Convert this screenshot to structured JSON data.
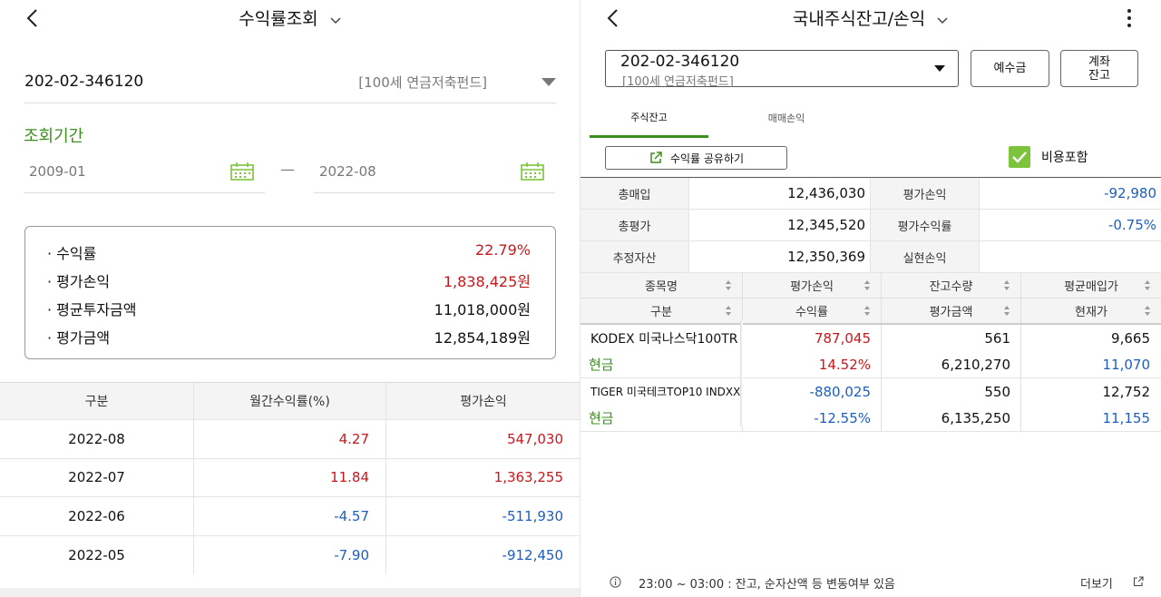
{
  "left": {
    "title": "수익률조회",
    "account": {
      "number": "202-02-346120",
      "name": "[100세 연금저축펀드]"
    },
    "period_label": "조회기간",
    "date_from": "2009-01",
    "date_to": "2022-08",
    "date_sep": "—",
    "summary": [
      {
        "label": "· 수익률",
        "value": "22.79%",
        "color": "#c8171c"
      },
      {
        "label": "· 평가손익",
        "value": "1,838,425원",
        "color": "#c8171c"
      },
      {
        "label": "· 평균투자금액",
        "value": "11,018,000원",
        "color": "#111111"
      },
      {
        "label": "· 평가금액",
        "value": "12,854,189원",
        "color": "#111111"
      }
    ],
    "table": {
      "headers": [
        "구분",
        "월간수익률(%)",
        "평가손익"
      ],
      "rows": [
        {
          "period": "2022-08",
          "rate": "4.27",
          "pl": "547,030",
          "color": "#c8171c"
        },
        {
          "period": "2022-07",
          "rate": "11.84",
          "pl": "1,363,255",
          "color": "#c8171c"
        },
        {
          "period": "2022-06",
          "rate": "-4.57",
          "pl": "-511,930",
          "color": "#1c5fbf"
        },
        {
          "period": "2022-05",
          "rate": "-7.90",
          "pl": "-912,450",
          "color": "#1c5fbf"
        }
      ]
    }
  },
  "right": {
    "title": "국내주식잔고/손익",
    "account": {
      "number": "202-02-346120",
      "name": "[100세 연금저축펀드]"
    },
    "btn_deposit": "예수금",
    "btn_balance_l1": "계좌",
    "btn_balance_l2": "잔고",
    "tabs": [
      "주식잔고",
      "매매손익"
    ],
    "share_label": "수익률 공유하기",
    "include_fee_label": "비용포함",
    "include_fee_checked": true,
    "summary": {
      "total_buy_label": "총매입",
      "total_buy": "12,436,030",
      "eval_pl_label": "평가손익",
      "eval_pl": "-92,980",
      "total_eval_label": "총평가",
      "total_eval": "12,345,520",
      "eval_rate_label": "평가수익률",
      "eval_rate": "-0.75%",
      "est_assets_label": "추정자산",
      "est_assets": "12,350,369",
      "realized_label": "실현손익",
      "realized": ""
    },
    "holdings_header": {
      "r1": [
        "종목명",
        "평가손익",
        "잔고수량",
        "평균매입가"
      ],
      "r2": [
        "구분",
        "수익률",
        "평가금액",
        "현재가"
      ]
    },
    "holdings": [
      {
        "name": "KODEX 미국나스닥100TR",
        "type": "현금",
        "eval_pl": "787,045",
        "rate": "14.52%",
        "qty": "561",
        "eval_amount": "6,210,270",
        "avg_price": "9,665",
        "cur_price": "11,070",
        "pl_color": "#c8171c",
        "price_color": "#1c5fbf"
      },
      {
        "name": "TIGER 미국테크TOP10 INDXX",
        "type": "현금",
        "eval_pl": "-880,025",
        "rate": "-12.55%",
        "qty": "550",
        "eval_amount": "6,135,250",
        "avg_price": "12,752",
        "cur_price": "11,155",
        "pl_color": "#1c5fbf",
        "price_color": "#1c5fbf"
      }
    ],
    "footer_note": "23:00 ~ 03:00 : 잔고, 순자산액 등 변동여부 있음",
    "footer_more": "더보기"
  }
}
